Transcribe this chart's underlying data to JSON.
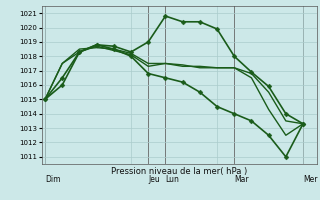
{
  "background_color": "#cce8e8",
  "grid_color": "#aacccc",
  "line_color": "#1a5c1a",
  "xlabel": "Pression niveau de la mer( hPa )",
  "ylim": [
    1010.5,
    1021.5
  ],
  "yticks": [
    1011,
    1012,
    1013,
    1014,
    1015,
    1016,
    1017,
    1018,
    1019,
    1020,
    1021
  ],
  "day_labels": [
    "Dim",
    "Jeu",
    "Lun",
    "Mar",
    "Mer"
  ],
  "day_positions": [
    0,
    6,
    7,
    11,
    15
  ],
  "xlim": [
    -0.2,
    15.8
  ],
  "series": [
    {
      "x": [
        0,
        1,
        2,
        3,
        4,
        5,
        6,
        7,
        8,
        9,
        10,
        11,
        12,
        13,
        14,
        15
      ],
      "y": [
        1015.0,
        1016.0,
        1018.3,
        1018.8,
        1018.7,
        1018.3,
        1019.0,
        1020.8,
        1020.4,
        1020.4,
        1019.9,
        1018.0,
        1016.9,
        1015.9,
        1014.0,
        1013.3
      ],
      "marker": "D",
      "markersize": 2.5,
      "linewidth": 1.2
    },
    {
      "x": [
        0,
        1,
        2,
        3,
        4,
        5,
        6,
        7,
        8,
        9,
        10,
        11,
        12,
        13,
        14,
        15
      ],
      "y": [
        1015.0,
        1017.5,
        1018.3,
        1018.7,
        1018.4,
        1018.1,
        1017.3,
        1017.5,
        1017.4,
        1017.2,
        1017.2,
        1017.2,
        1016.5,
        1014.3,
        1012.5,
        1013.3
      ],
      "marker": null,
      "markersize": 0,
      "linewidth": 1.0
    },
    {
      "x": [
        0,
        1,
        2,
        3,
        4,
        5,
        6,
        7,
        8,
        9,
        10,
        11,
        12,
        13,
        14,
        15
      ],
      "y": [
        1015.0,
        1017.5,
        1018.5,
        1018.6,
        1018.5,
        1018.2,
        1017.5,
        1017.5,
        1017.3,
        1017.3,
        1017.2,
        1017.2,
        1016.8,
        1015.5,
        1013.5,
        1013.3
      ],
      "marker": null,
      "markersize": 0,
      "linewidth": 1.0
    },
    {
      "x": [
        0,
        1,
        2,
        3,
        4,
        5,
        6,
        7,
        8,
        9,
        10,
        11,
        12,
        13,
        14,
        15
      ],
      "y": [
        1015.0,
        1016.5,
        1018.3,
        1018.8,
        1018.5,
        1018.0,
        1016.8,
        1016.5,
        1016.2,
        1015.5,
        1014.5,
        1014.0,
        1013.5,
        1012.5,
        1011.0,
        1013.3
      ],
      "marker": "D",
      "markersize": 2.5,
      "linewidth": 1.2
    }
  ]
}
